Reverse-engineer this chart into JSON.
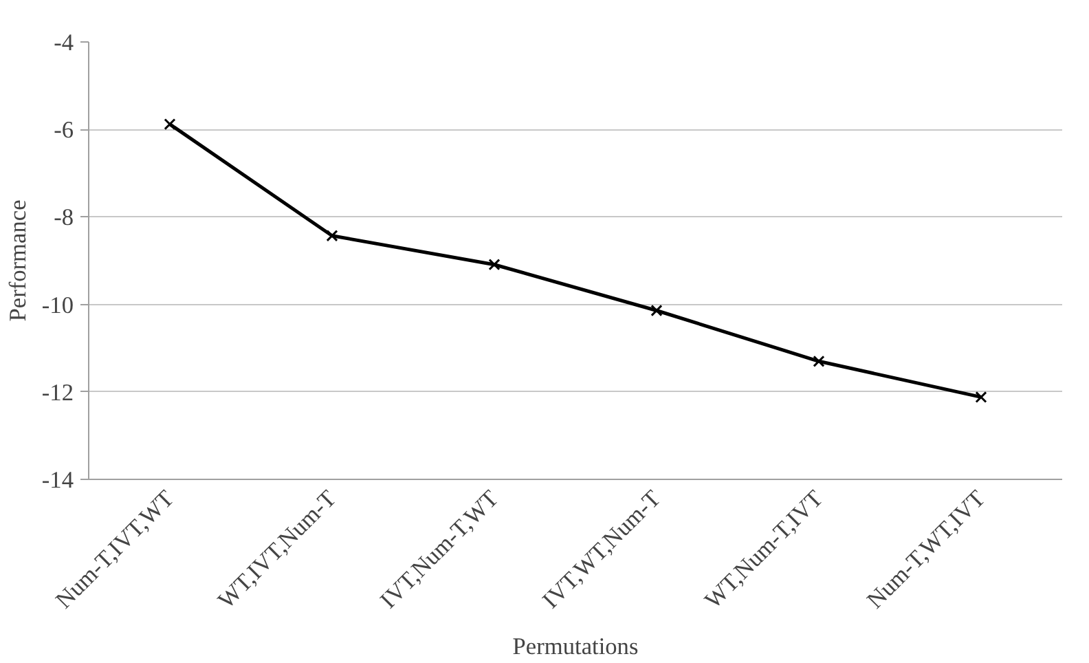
{
  "chart_data": {
    "type": "line",
    "xlabel": "Permutations",
    "ylabel": "Performance",
    "categories": [
      "Num-T,IVT,WT",
      "WT,IVT,Num-T",
      "IVT,Num-T,WT",
      "IVT,WT,Num-T",
      "WT,Num-T,IVT",
      "Num-T,WT,IVT"
    ],
    "series": [
      {
        "color": "#000000",
        "values": [
          -5.88,
          -8.43,
          -9.09,
          -10.14,
          -11.3,
          -12.12
        ]
      }
    ],
    "ylim": [
      -14,
      -4
    ],
    "yticks": [
      -14,
      -12,
      -10,
      -8,
      -6,
      -4
    ],
    "grid": "y",
    "marker": "cross",
    "line_style": "solid"
  }
}
